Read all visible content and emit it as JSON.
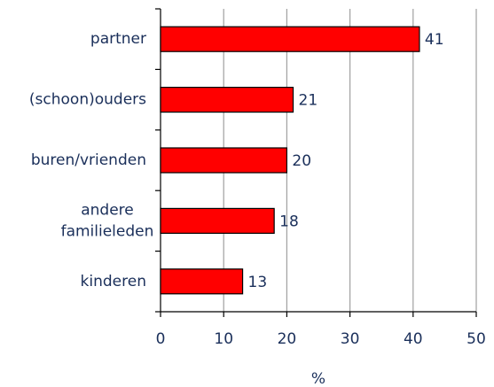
{
  "chart_data": {
    "type": "bar",
    "orientation": "horizontal",
    "categories": [
      "partner",
      "(schoon)ouders",
      "buren/vrienden",
      "andere familieleden",
      "kinderen"
    ],
    "values": [
      41,
      21,
      20,
      18,
      13
    ],
    "color": "#ff0000",
    "xlabel": "%",
    "xlim": [
      0,
      50
    ],
    "xticks": [
      0,
      10,
      20,
      30,
      40,
      50
    ],
    "grid": true
  }
}
